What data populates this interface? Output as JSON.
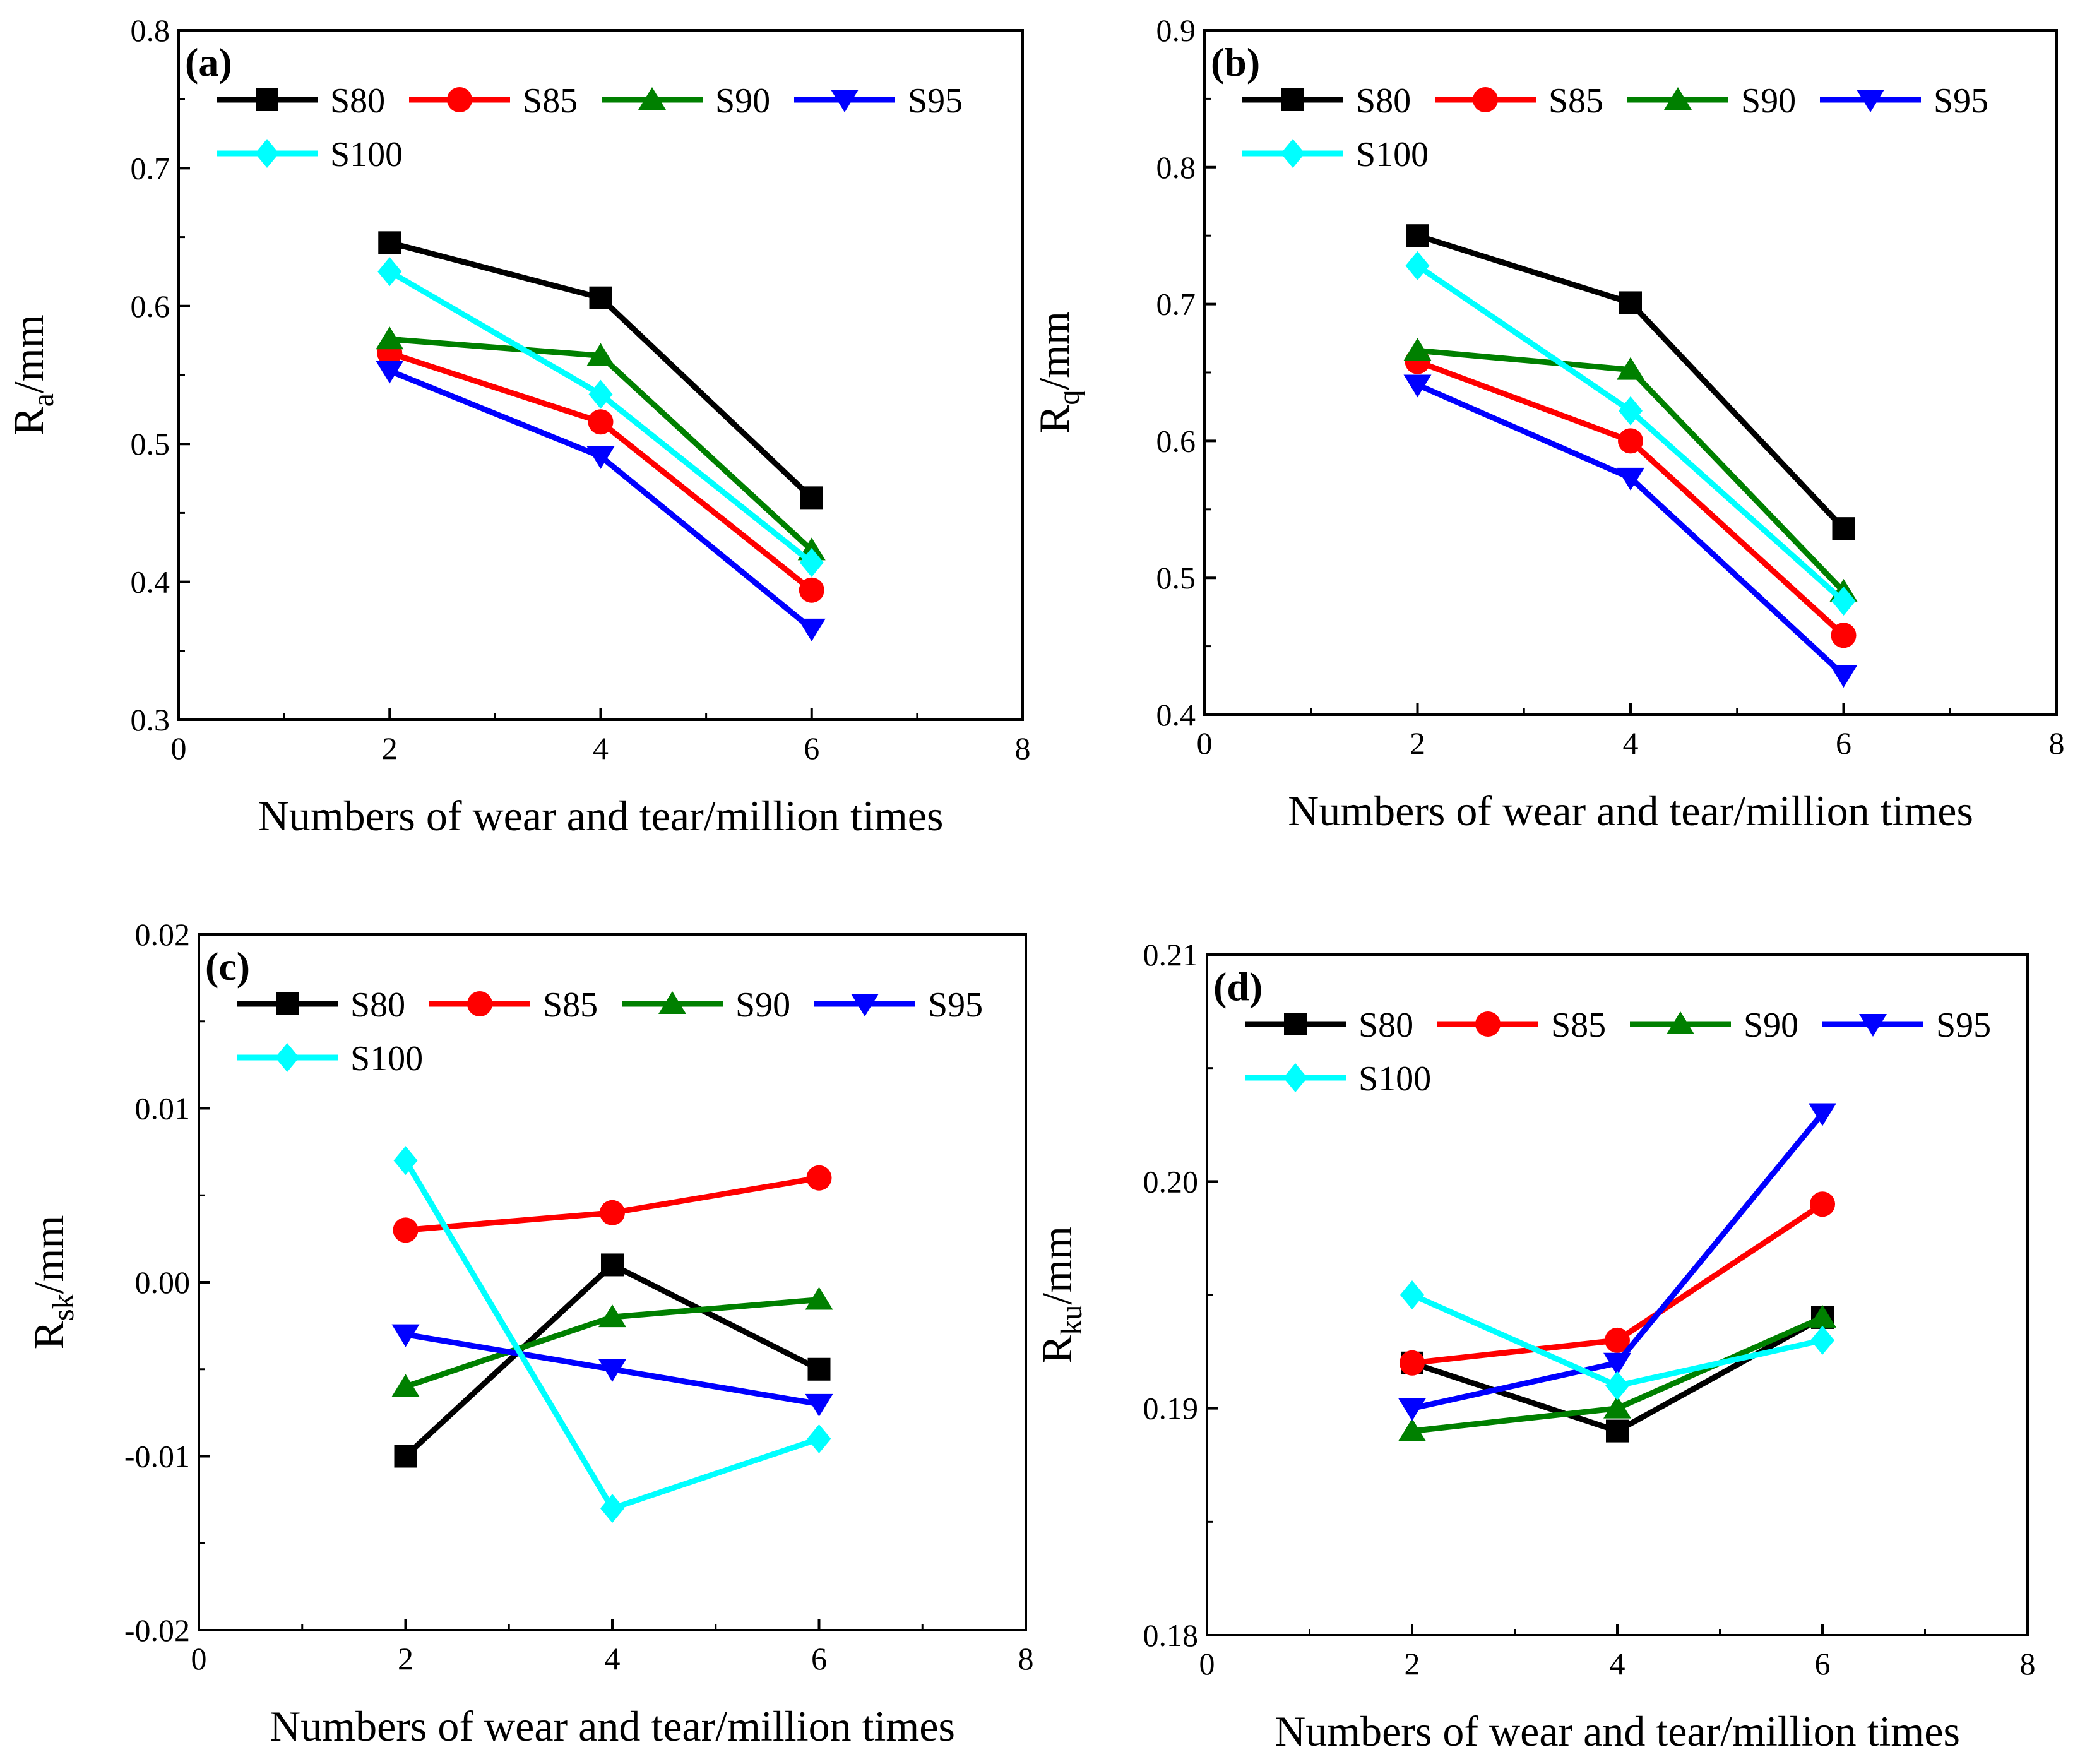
{
  "chart_data": [
    {
      "type": "line",
      "panel_label": "(a)",
      "title": "",
      "xlabel": "Numbers of wear and tear/million times",
      "ylabel_main": "R",
      "ylabel_sub": "a",
      "ylabel_unit": "/mm",
      "xlim": [
        0,
        8
      ],
      "ylim": [
        0.3,
        0.8
      ],
      "x_ticks": [
        "0",
        "2",
        "4",
        "6",
        "8"
      ],
      "y_ticks": [
        "0.3",
        "0.4",
        "0.5",
        "0.6",
        "0.7",
        "0.8"
      ],
      "x": [
        2,
        4,
        6
      ],
      "legend_position": "top-left",
      "series": [
        {
          "name": "S80",
          "values": [
            0.646,
            0.606,
            0.461
          ]
        },
        {
          "name": "S85",
          "values": [
            0.566,
            0.516,
            0.394
          ]
        },
        {
          "name": "S90",
          "values": [
            0.576,
            0.564,
            0.423
          ]
        },
        {
          "name": "S95",
          "values": [
            0.553,
            0.491,
            0.366
          ]
        },
        {
          "name": "S100",
          "values": [
            0.625,
            0.536,
            0.414
          ]
        }
      ]
    },
    {
      "type": "line",
      "panel_label": "(b)",
      "title": "",
      "xlabel": "Numbers of wear and tear/million times",
      "ylabel_main": "R",
      "ylabel_sub": "q",
      "ylabel_unit": "/mm",
      "xlim": [
        0,
        8
      ],
      "ylim": [
        0.4,
        0.9
      ],
      "x_ticks": [
        "0",
        "2",
        "4",
        "6",
        "8"
      ],
      "y_ticks": [
        "0.4",
        "0.5",
        "0.6",
        "0.7",
        "0.8",
        "0.9"
      ],
      "x": [
        2,
        4,
        6
      ],
      "legend_position": "top-left",
      "series": [
        {
          "name": "S80",
          "values": [
            0.75,
            0.701,
            0.536
          ]
        },
        {
          "name": "S85",
          "values": [
            0.658,
            0.6,
            0.458
          ]
        },
        {
          "name": "S90",
          "values": [
            0.666,
            0.652,
            0.49
          ]
        },
        {
          "name": "S95",
          "values": [
            0.641,
            0.573,
            0.429
          ]
        },
        {
          "name": "S100",
          "values": [
            0.728,
            0.622,
            0.483
          ]
        }
      ]
    },
    {
      "type": "line",
      "panel_label": "(c)",
      "title": "",
      "xlabel": "Numbers of wear and tear/million times",
      "ylabel_main": "R",
      "ylabel_sub": "sk",
      "ylabel_unit": "/mm",
      "xlim": [
        0,
        8
      ],
      "ylim": [
        -0.02,
        0.02
      ],
      "x_ticks": [
        "0",
        "2",
        "4",
        "6",
        "8"
      ],
      "y_ticks": [
        "-0.02",
        "-0.01",
        "0.00",
        "0.01",
        "0.02"
      ],
      "x": [
        2,
        4,
        6
      ],
      "legend_position": "top-left",
      "series": [
        {
          "name": "S80",
          "values": [
            -0.01,
            0.001,
            -0.005
          ]
        },
        {
          "name": "S85",
          "values": [
            0.003,
            0.004,
            0.006
          ]
        },
        {
          "name": "S90",
          "values": [
            -0.006,
            -0.002,
            -0.001
          ]
        },
        {
          "name": "S95",
          "values": [
            -0.003,
            -0.005,
            -0.007
          ]
        },
        {
          "name": "S100",
          "values": [
            0.007,
            -0.013,
            -0.009
          ]
        }
      ]
    },
    {
      "type": "line",
      "panel_label": "(d)",
      "title": "",
      "xlabel": "Numbers of wear and tear/million times",
      "ylabel_main": "R",
      "ylabel_sub": "ku",
      "ylabel_unit": "/mm",
      "xlim": [
        0,
        8
      ],
      "ylim": [
        0.18,
        0.21
      ],
      "x_ticks": [
        "0",
        "2",
        "4",
        "6",
        "8"
      ],
      "y_ticks": [
        "0.18",
        "0.19",
        "0.20",
        "0.21"
      ],
      "x": [
        2,
        4,
        6
      ],
      "legend_position": "top-left",
      "series": [
        {
          "name": "S80",
          "values": [
            0.192,
            0.189,
            0.194
          ]
        },
        {
          "name": "S85",
          "values": [
            0.192,
            0.193,
            0.199
          ]
        },
        {
          "name": "S90",
          "values": [
            0.189,
            0.19,
            0.194
          ]
        },
        {
          "name": "S95",
          "values": [
            0.19,
            0.192,
            0.203
          ]
        },
        {
          "name": "S100",
          "values": [
            0.195,
            0.191,
            0.193
          ]
        }
      ]
    }
  ],
  "series_styles": [
    {
      "name": "S80",
      "color": "#000000",
      "marker": "square"
    },
    {
      "name": "S85",
      "color": "#ff0000",
      "marker": "circle"
    },
    {
      "name": "S90",
      "color": "#008000",
      "marker": "triangle-up"
    },
    {
      "name": "S95",
      "color": "#0000ff",
      "marker": "triangle-down"
    },
    {
      "name": "S100",
      "color": "#00ffff",
      "marker": "diamond"
    }
  ]
}
